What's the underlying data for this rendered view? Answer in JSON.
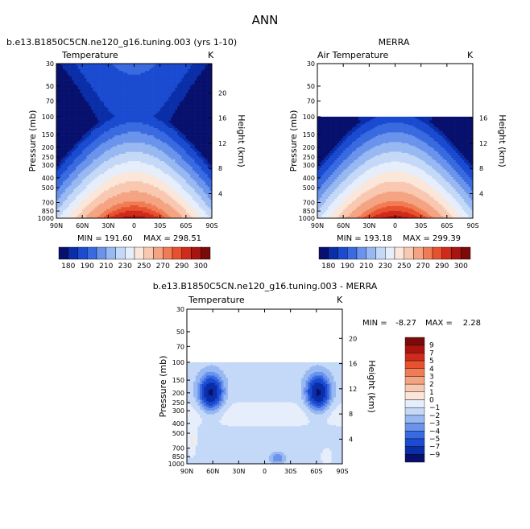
{
  "page_title": "ANN",
  "chart_data": [
    {
      "type": "heatmap",
      "id": "model",
      "title": "b.e13.B1850C5CN.ne120_g16.tuning.003 (yrs 1-10)",
      "variable": "Temperature",
      "units": "K",
      "ylabel": "Pressure (mb)",
      "y2label": "Height (km)",
      "x_ticks": [
        "90N",
        "60N",
        "30N",
        "0",
        "30S",
        "60S",
        "90S"
      ],
      "y_ticks": [
        30,
        50,
        70,
        100,
        150,
        200,
        250,
        300,
        400,
        500,
        700,
        850,
        1000
      ],
      "y2_ticks": [
        20,
        16,
        12,
        8,
        4
      ],
      "ylim": [
        30,
        1000
      ],
      "min_label": "MIN = 191.60",
      "max_label": "MAX = 298.51",
      "top_cut_mb": 30,
      "colorbar_labels": [
        "180",
        "190",
        "210",
        "230",
        "250",
        "270",
        "290",
        "300"
      ]
    },
    {
      "type": "heatmap",
      "id": "obs",
      "title": "MERRA",
      "variable": "Air Temperature",
      "units": "K",
      "ylabel": "Pressure (mb)",
      "y2label": "Height (km)",
      "x_ticks": [
        "90N",
        "60N",
        "30N",
        "0",
        "30S",
        "60S",
        "90S"
      ],
      "y_ticks": [
        30,
        50,
        70,
        100,
        150,
        200,
        250,
        300,
        400,
        500,
        700,
        850,
        1000
      ],
      "y2_ticks": [
        16,
        12,
        8,
        4
      ],
      "ylim": [
        30,
        1000
      ],
      "min_label": "MIN = 193.18",
      "max_label": "MAX = 299.39",
      "top_cut_mb": 100,
      "colorbar_labels": [
        "180",
        "190",
        "210",
        "230",
        "250",
        "270",
        "290",
        "300"
      ]
    },
    {
      "type": "heatmap",
      "id": "diff",
      "title": "b.e13.B1850C5CN.ne120_g16.tuning.003 - MERRA",
      "variable": "Temperature",
      "units": "K",
      "ylabel": "Pressure (mb)",
      "y2label": "Height (km)",
      "x_ticks": [
        "90N",
        "60N",
        "30N",
        "0",
        "30S",
        "60S",
        "90S"
      ],
      "y_ticks": [
        30,
        50,
        70,
        100,
        150,
        200,
        250,
        300,
        400,
        500,
        700,
        850,
        1000
      ],
      "y2_ticks": [
        20,
        16,
        12,
        8,
        4
      ],
      "ylim": [
        30,
        1000
      ],
      "min_text": "MIN =",
      "min_value": "-8.27",
      "max_text": "MAX =",
      "max_value": "2.28",
      "top_cut_mb": 100,
      "colorbar_labels": [
        "9",
        "7",
        "5",
        "4",
        "3",
        "2",
        "1",
        "0",
        "−1",
        "−2",
        "−3",
        "−4",
        "−5",
        "−7",
        "−9"
      ]
    }
  ],
  "colors": {
    "abs_scale": [
      "#08106e",
      "#0a2ea8",
      "#1a4bd0",
      "#3a6ae0",
      "#6a94ec",
      "#98b8f2",
      "#c4d8f8",
      "#e6eefb",
      "#fbe6da",
      "#f8c8b0",
      "#f4a482",
      "#f07c55",
      "#e8512e",
      "#cf2a1a",
      "#a8140f",
      "#7a0b08"
    ],
    "diff_scale": [
      "#7a0b08",
      "#a8140f",
      "#cf2a1a",
      "#e8512e",
      "#f07c55",
      "#f4a482",
      "#f8c8b0",
      "#fbe6da",
      "#e6eefb",
      "#c4d8f8",
      "#98b8f2",
      "#6a94ec",
      "#3a6ae0",
      "#1a4bd0",
      "#0a2ea8",
      "#08106e"
    ]
  }
}
